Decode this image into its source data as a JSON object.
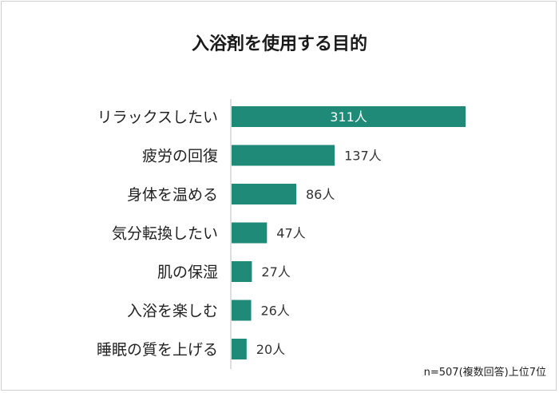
{
  "chart_data": {
    "type": "bar",
    "orientation": "horizontal",
    "title": "入浴剤を使用する目的",
    "categories": [
      "リラックスしたい",
      "疲労の回復",
      "身体を温める",
      "気分転換したい",
      "肌の保湿",
      "入浴を楽しむ",
      "睡眠の質を上げる"
    ],
    "values": [
      311,
      137,
      86,
      47,
      27,
      26,
      20
    ],
    "value_labels": [
      "311人",
      "137人",
      "86人",
      "47人",
      "27人",
      "26人",
      "20人"
    ],
    "xlim": [
      0,
      311
    ],
    "grid": false,
    "legend": "none",
    "bar_color": "#1f8a78",
    "note": "n=507(複数回答)上位7位"
  }
}
